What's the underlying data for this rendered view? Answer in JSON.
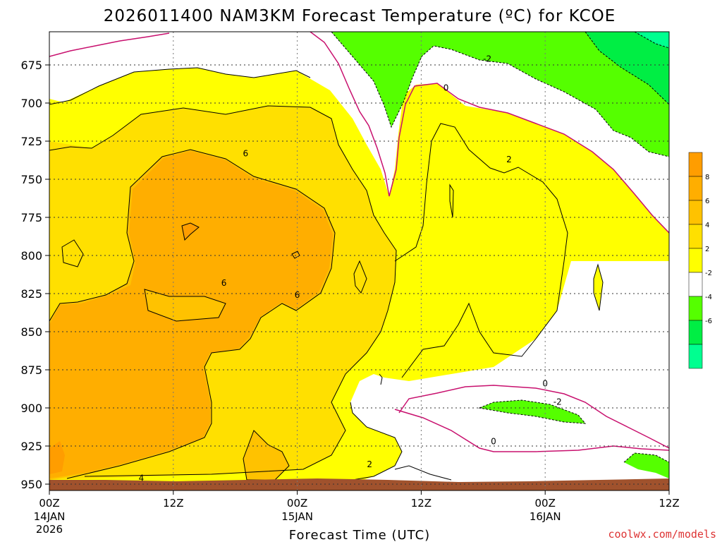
{
  "chart_data": {
    "type": "heatmap",
    "title": "2026011400 NAM3KM Forecast Temperature (ºC) for KCOE",
    "xlabel": "Forecast Time (UTC)",
    "ylabel": "",
    "credit": "coolwx.com/models",
    "y_scale": "pressure (hPa), increasing downward",
    "ylim": [
      950,
      660
    ],
    "y_ticks": [
      675,
      700,
      725,
      750,
      775,
      800,
      825,
      850,
      875,
      900,
      925,
      950
    ],
    "x_range_hours": [
      0,
      60
    ],
    "x_ticks": [
      {
        "hour": 0,
        "label": "00Z",
        "date": "14JAN",
        "year": "2026"
      },
      {
        "hour": 12,
        "label": "12Z",
        "date": "",
        "year": ""
      },
      {
        "hour": 24,
        "label": "00Z",
        "date": "15JAN",
        "year": ""
      },
      {
        "hour": 36,
        "label": "12Z",
        "date": "",
        "year": ""
      },
      {
        "hour": 48,
        "label": "00Z",
        "date": "16JAN",
        "year": ""
      },
      {
        "hour": 60,
        "label": "12Z",
        "date": "",
        "year": ""
      }
    ],
    "grid": true,
    "contour_interval": 2,
    "contour_labels": [
      {
        "value": "-2",
        "hour": 42.4,
        "p": 671
      },
      {
        "value": "0",
        "hour": 38.4,
        "p": 690
      },
      {
        "value": "2",
        "hour": 44.5,
        "p": 737
      },
      {
        "value": "6",
        "hour": 19.0,
        "p": 733
      },
      {
        "value": "6",
        "hour": 16.9,
        "p": 818
      },
      {
        "value": "6",
        "hour": 24.0,
        "p": 826
      },
      {
        "value": "2",
        "hour": 31.0,
        "p": 937
      },
      {
        "value": "0",
        "hour": 48.0,
        "p": 884
      },
      {
        "value": "-2",
        "hour": 49.2,
        "p": 896
      },
      {
        "value": "0",
        "hour": 43.0,
        "p": 922
      },
      {
        "value": "4",
        "hour": 8.9,
        "p": 946
      }
    ],
    "legend": {
      "placement": "right",
      "labels": [
        "8",
        "6",
        "4",
        "2",
        "-2",
        "-4",
        "-6"
      ],
      "bins": [
        {
          "range": [
            8,
            10
          ],
          "color": "#ff9d00"
        },
        {
          "range": [
            6,
            8
          ],
          "color": "#ffae00"
        },
        {
          "range": [
            4,
            6
          ],
          "color": "#ffc200"
        },
        {
          "range": [
            2,
            4
          ],
          "color": "#ffe000"
        },
        {
          "range": [
            0,
            2
          ],
          "color": "#ffff00"
        },
        {
          "range": [
            -2,
            0
          ],
          "color": "#ffffff"
        },
        {
          "range": [
            -4,
            -2
          ],
          "color": "#55ff00"
        },
        {
          "range": [
            -6,
            -4
          ],
          "color": "#00ee44"
        },
        {
          "range": [
            -8,
            -6
          ],
          "color": "#00ff90"
        }
      ]
    },
    "terrain_color": "#a0522d",
    "freezing_line_color": "#c8106e"
  }
}
